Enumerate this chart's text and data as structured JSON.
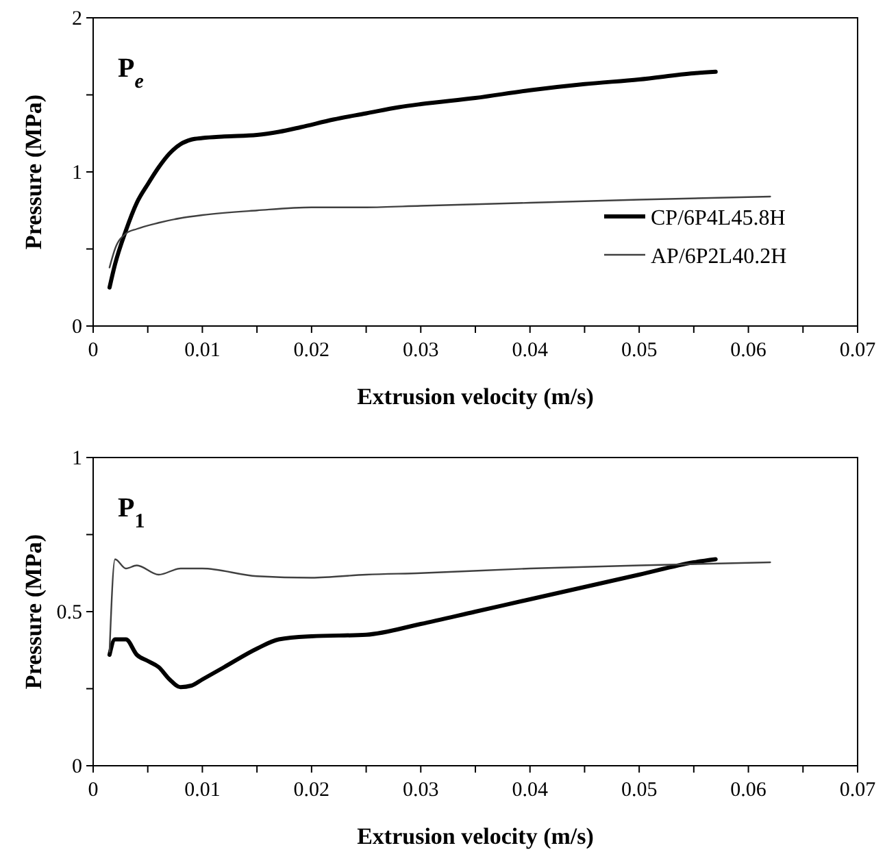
{
  "chart_data": [
    {
      "type": "line",
      "xlabel": "Extrusion velocity (m/s)",
      "ylabel": "Pressure (MPa)",
      "annotations": [
        "P$_{e}$"
      ],
      "xlim": [
        0,
        0.07
      ],
      "ylim": [
        0,
        2
      ],
      "xticks": [
        0,
        {
          "value": 0.005,
          "label": null
        },
        0.01,
        {
          "value": 0.015,
          "label": null
        },
        0.02,
        {
          "value": 0.025,
          "label": null
        },
        0.03,
        {
          "value": 0.035,
          "label": null
        },
        0.04,
        {
          "value": 0.045,
          "label": null
        },
        0.05,
        {
          "value": 0.055,
          "label": null
        },
        0.06,
        {
          "value": 0.065,
          "label": null
        },
        0.07
      ],
      "yticks": [
        0,
        {
          "value": 0.5,
          "label": null
        },
        1,
        {
          "value": 1.5,
          "label": null
        },
        2
      ],
      "legend": "bottom right",
      "grid": false,
      "series": [
        {
          "name": "CP/6P4L45.8H",
          "color": "#000000",
          "x": [
            0.0015,
            0.002,
            0.003,
            0.004,
            0.005,
            0.006,
            0.007,
            0.008,
            0.009,
            0.01,
            0.012,
            0.015,
            0.017,
            0.019,
            0.022,
            0.025,
            0.028,
            0.03,
            0.035,
            0.04,
            0.045,
            0.05,
            0.055,
            0.057
          ],
          "values": [
            0.25,
            0.4,
            0.62,
            0.8,
            0.92,
            1.03,
            1.12,
            1.18,
            1.21,
            1.22,
            1.23,
            1.24,
            1.26,
            1.29,
            1.34,
            1.38,
            1.42,
            1.44,
            1.48,
            1.53,
            1.57,
            1.6,
            1.64,
            1.65
          ]
        },
        {
          "name": "AP/6P2L40.2H",
          "color": "#404040",
          "x": [
            0.0015,
            0.002,
            0.003,
            0.004,
            0.006,
            0.008,
            0.01,
            0.015,
            0.02,
            0.025,
            0.03,
            0.04,
            0.05,
            0.062
          ],
          "values": [
            0.38,
            0.5,
            0.6,
            0.63,
            0.67,
            0.7,
            0.72,
            0.75,
            0.77,
            0.77,
            0.78,
            0.8,
            0.82,
            0.84
          ]
        }
      ]
    },
    {
      "type": "line",
      "xlabel": "Extrusion velocity (m/s)",
      "ylabel": "Pressure (MPa)",
      "annotations": [
        "P$_{1}$"
      ],
      "xlim": [
        0,
        0.07
      ],
      "ylim": [
        0,
        1
      ],
      "xticks": [
        0,
        {
          "value": 0.005,
          "label": null
        },
        0.01,
        {
          "value": 0.015,
          "label": null
        },
        0.02,
        {
          "value": 0.025,
          "label": null
        },
        0.03,
        {
          "value": 0.035,
          "label": null
        },
        0.04,
        {
          "value": 0.045,
          "label": null
        },
        0.05,
        {
          "value": 0.055,
          "label": null
        },
        0.06,
        {
          "value": 0.065,
          "label": null
        },
        0.07
      ],
      "yticks": [
        0,
        {
          "value": 0.25,
          "label": null
        },
        0.5,
        {
          "value": 0.75,
          "label": null
        },
        1
      ],
      "grid": false,
      "series": [
        {
          "color": "#000000",
          "x": [
            0.0015,
            0.002,
            0.003,
            0.004,
            0.005,
            0.006,
            0.007,
            0.008,
            0.009,
            0.01,
            0.012,
            0.015,
            0.017,
            0.02,
            0.025,
            0.03,
            0.035,
            0.04,
            0.045,
            0.05,
            0.055,
            0.057
          ],
          "values": [
            0.36,
            0.41,
            0.41,
            0.36,
            0.34,
            0.32,
            0.28,
            0.255,
            0.26,
            0.28,
            0.32,
            0.38,
            0.41,
            0.42,
            0.425,
            0.46,
            0.5,
            0.54,
            0.58,
            0.62,
            0.66,
            0.67
          ]
        },
        {
          "color": "#404040",
          "x": [
            0.0015,
            0.002,
            0.003,
            0.004,
            0.006,
            0.008,
            0.01,
            0.015,
            0.02,
            0.025,
            0.03,
            0.04,
            0.05,
            0.062
          ],
          "values": [
            0.37,
            0.67,
            0.64,
            0.65,
            0.62,
            0.64,
            0.64,
            0.615,
            0.61,
            0.62,
            0.625,
            0.64,
            0.65,
            0.66
          ]
        }
      ]
    }
  ]
}
